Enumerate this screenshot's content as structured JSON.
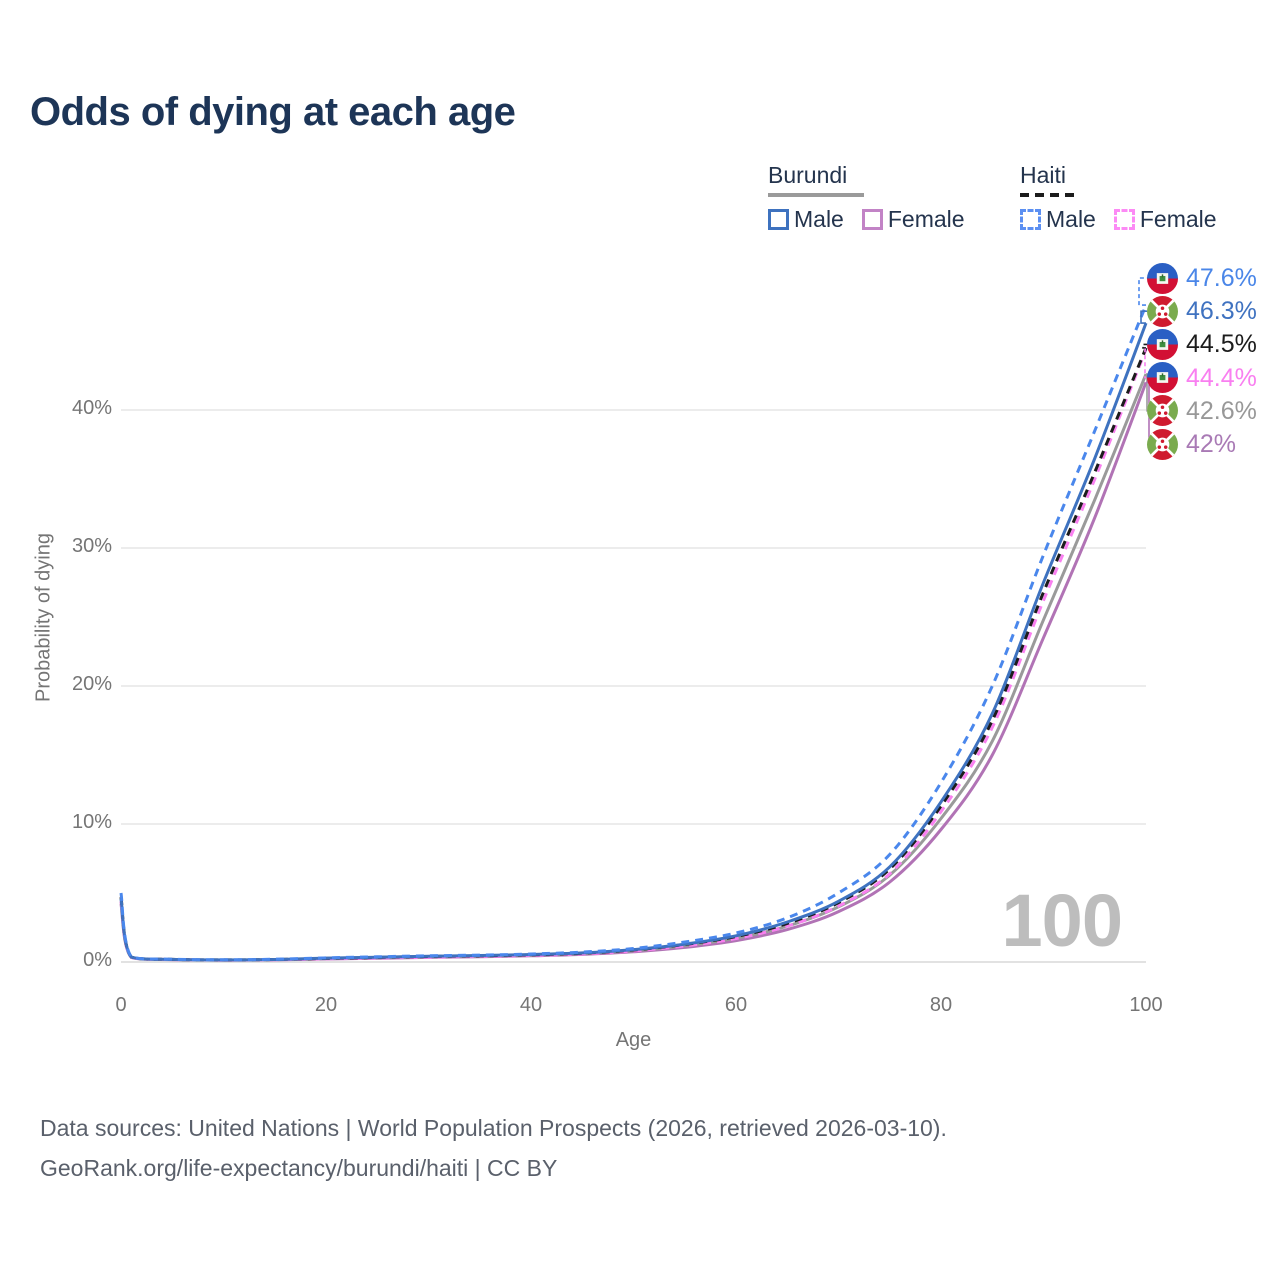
{
  "title": "Odds of dying at each age",
  "legend": {
    "groups": [
      {
        "name": "Burundi",
        "line_style": "solid",
        "underline_color": "#9a9a9a",
        "items": [
          {
            "label": "Male",
            "color": "#3e72bf",
            "dash": false
          },
          {
            "label": "Female",
            "color": "#c283c6",
            "dash": false
          }
        ]
      },
      {
        "name": "Haiti",
        "line_style": "dashed",
        "underline_color": "#1c1c1c",
        "items": [
          {
            "label": "Male",
            "color": "#5b8ff2",
            "dash": true
          },
          {
            "label": "Female",
            "color": "#fc8af5",
            "dash": true
          }
        ]
      }
    ]
  },
  "chart_data": {
    "type": "line",
    "title": "Odds of dying at each age",
    "xlabel": "Age",
    "ylabel": "Probability of dying",
    "xlim": [
      0,
      100
    ],
    "ylim_pct": [
      0,
      50
    ],
    "x_ticks": [
      0,
      20,
      40,
      60,
      80,
      100
    ],
    "y_ticks": [
      "0%",
      "10%",
      "20%",
      "30%",
      "40%"
    ],
    "grid": "horizontal",
    "legend_position": "top-right",
    "watermark": "100",
    "ages": [
      0,
      1,
      5,
      10,
      15,
      20,
      25,
      30,
      35,
      40,
      45,
      50,
      55,
      60,
      65,
      70,
      75,
      80,
      85,
      90,
      95,
      100
    ],
    "series": [
      {
        "id": "haiti-male",
        "country": "Haiti",
        "sex": "Male",
        "flag": "haiti",
        "line_color": "#4a87ec",
        "line_style": "dashed",
        "end_label": "47.6%",
        "end_label_color": "#4a86e8",
        "values": [
          5.0,
          0.38,
          0.2,
          0.16,
          0.2,
          0.3,
          0.38,
          0.45,
          0.5,
          0.58,
          0.72,
          0.98,
          1.45,
          2.1,
          3.2,
          5.0,
          7.8,
          13.0,
          20.0,
          29.5,
          38.5,
          47.6
        ]
      },
      {
        "id": "burundi-male",
        "country": "Burundi",
        "sex": "Male",
        "flag": "burundi",
        "line_color": "#3e72bf",
        "line_style": "solid",
        "end_label": "46.3%",
        "end_label_color": "#3f72c0",
        "values": [
          4.6,
          0.36,
          0.19,
          0.15,
          0.18,
          0.28,
          0.35,
          0.42,
          0.47,
          0.54,
          0.66,
          0.9,
          1.3,
          1.9,
          2.9,
          4.4,
          6.9,
          11.6,
          18.0,
          27.5,
          36.5,
          46.3
        ]
      },
      {
        "id": "haiti-both",
        "country": "Haiti",
        "sex": "Both",
        "flag": "haiti",
        "line_color": "#1c1c1c",
        "line_style": "dashed",
        "end_label": "44.5%",
        "end_label_color": "#1c1c1c",
        "values": [
          4.7,
          0.36,
          0.19,
          0.15,
          0.18,
          0.26,
          0.33,
          0.4,
          0.45,
          0.52,
          0.64,
          0.87,
          1.27,
          1.85,
          2.8,
          4.3,
          6.75,
          11.3,
          17.5,
          26.8,
          35.5,
          44.5
        ]
      },
      {
        "id": "haiti-female",
        "country": "Haiti",
        "sex": "Female",
        "flag": "haiti",
        "line_color": "#f980f0",
        "line_style": "dashed",
        "end_label": "44.4%",
        "end_label_color": "#f97ff0",
        "values": [
          4.4,
          0.34,
          0.18,
          0.14,
          0.16,
          0.23,
          0.29,
          0.35,
          0.41,
          0.48,
          0.59,
          0.8,
          1.17,
          1.7,
          2.6,
          4.05,
          6.4,
          10.9,
          17.0,
          26.2,
          35.0,
          44.4
        ]
      },
      {
        "id": "burundi-both",
        "country": "Burundi",
        "sex": "Both",
        "flag": "burundi",
        "line_color": "#9a9a9a",
        "line_style": "solid",
        "end_label": "42.6%",
        "end_label_color": "#989898",
        "values": [
          4.4,
          0.35,
          0.18,
          0.14,
          0.17,
          0.25,
          0.31,
          0.38,
          0.43,
          0.5,
          0.61,
          0.82,
          1.18,
          1.72,
          2.6,
          4.0,
          6.3,
          10.4,
          16.0,
          24.8,
          33.5,
          42.6
        ]
      },
      {
        "id": "burundi-female",
        "country": "Burundi",
        "sex": "Female",
        "flag": "burundi",
        "line_color": "#b173b5",
        "line_style": "solid",
        "end_label": "42%",
        "end_label_color": "#a97ab5",
        "values": [
          4.2,
          0.33,
          0.17,
          0.13,
          0.15,
          0.22,
          0.27,
          0.33,
          0.38,
          0.45,
          0.55,
          0.74,
          1.06,
          1.55,
          2.35,
          3.65,
          5.8,
          9.6,
          15.0,
          23.5,
          32.2,
          42.0
        ]
      }
    ]
  },
  "footer": {
    "line1": "Data sources: United Nations | World Population Prospects (2026, retrieved 2026-03-10).",
    "line2": "GeoRank.org/life-expectancy/burundi/haiti | CC BY"
  }
}
